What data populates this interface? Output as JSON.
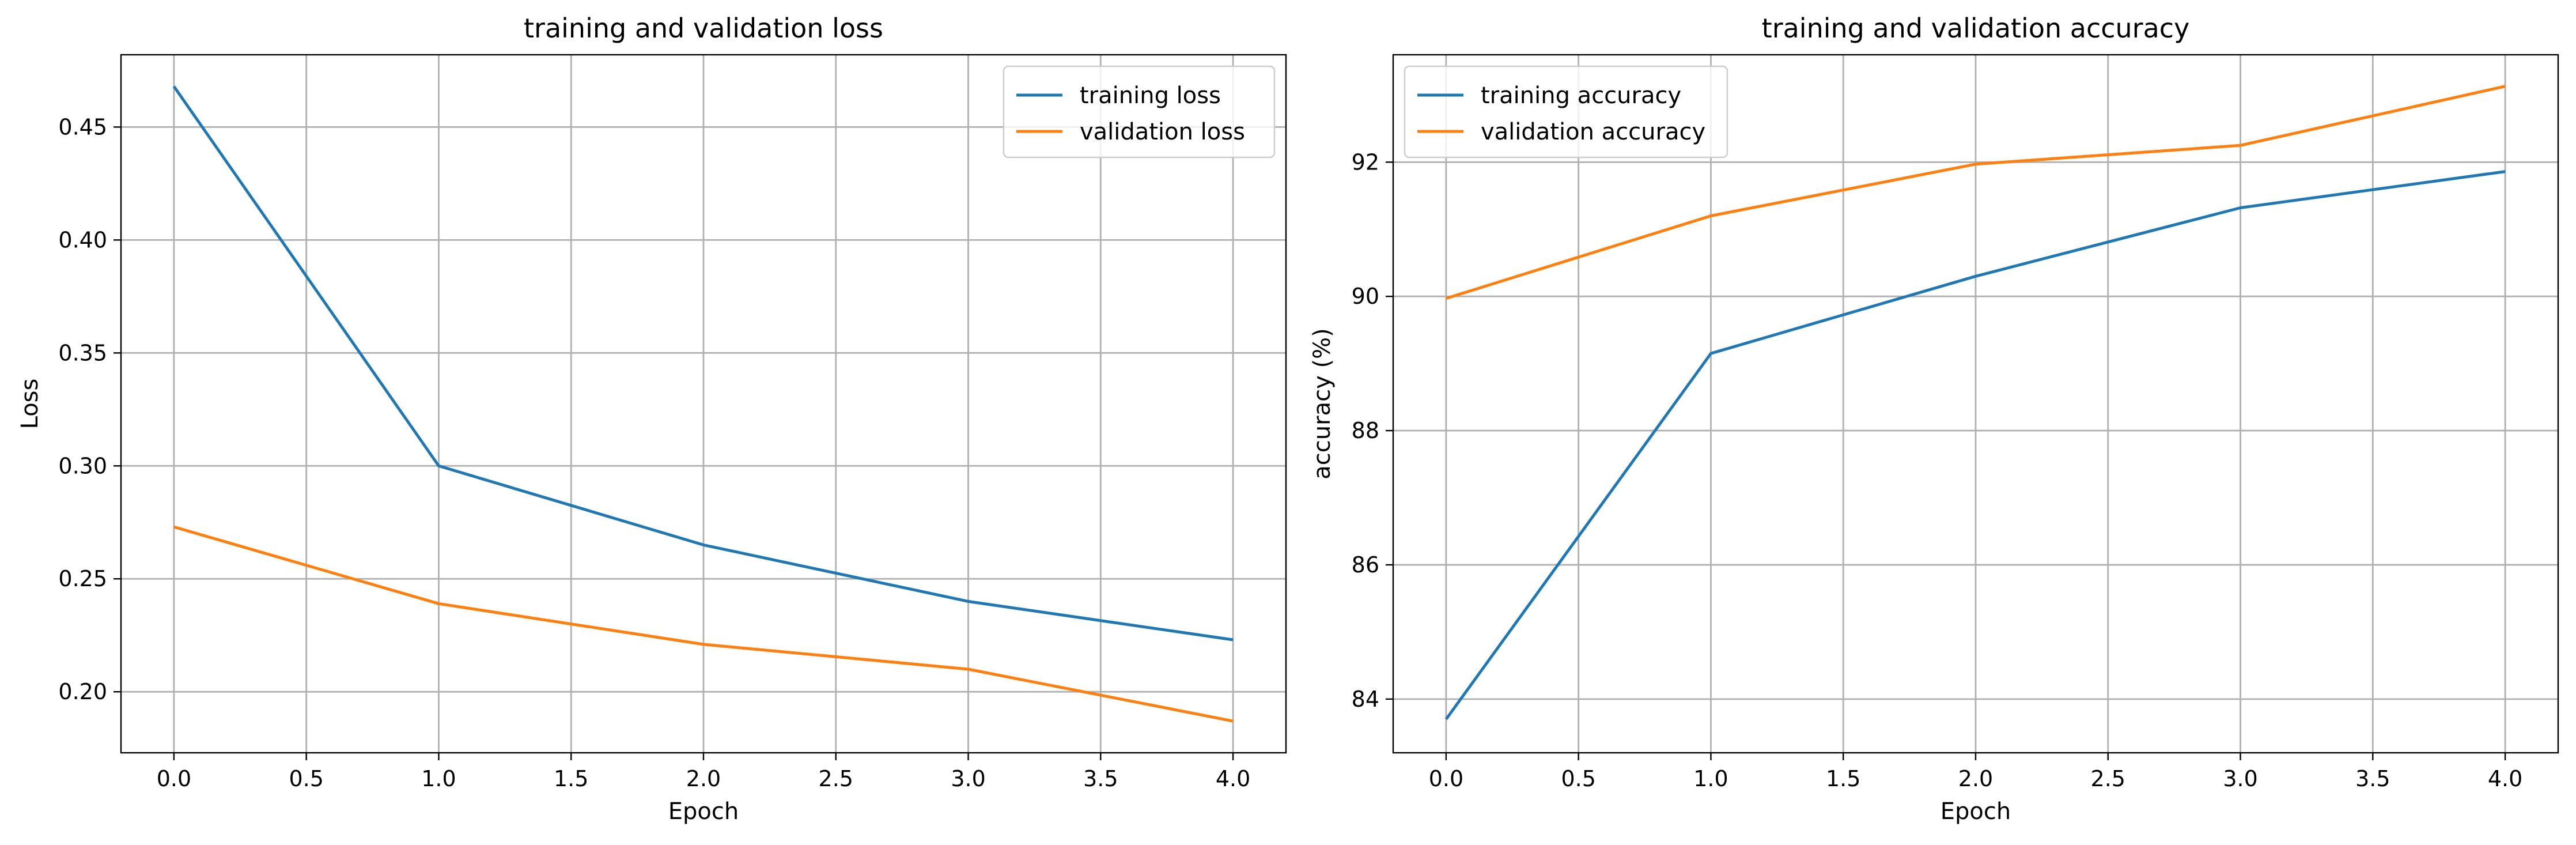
{
  "chart_data": [
    {
      "type": "line",
      "title": "training and validation loss",
      "xlabel": "Epoch",
      "ylabel": "Loss",
      "xlim": [
        -0.2,
        4.2
      ],
      "ylim": [
        0.173,
        0.482
      ],
      "xticks": [
        0.0,
        0.5,
        1.0,
        1.5,
        2.0,
        2.5,
        3.0,
        3.5,
        4.0
      ],
      "xtick_labels": [
        "0.0",
        "0.5",
        "1.0",
        "1.5",
        "2.0",
        "2.5",
        "3.0",
        "3.5",
        "4.0"
      ],
      "yticks": [
        0.2,
        0.25,
        0.3,
        0.35,
        0.4,
        0.45
      ],
      "ytick_labels": [
        "0.20",
        "0.25",
        "0.30",
        "0.35",
        "0.40",
        "0.45"
      ],
      "grid": true,
      "legend_position": "top-right",
      "x": [
        0,
        1,
        2,
        3,
        4
      ],
      "series": [
        {
          "name": "training loss",
          "color": "#1f77b4",
          "values": [
            0.468,
            0.3,
            0.265,
            0.24,
            0.223
          ]
        },
        {
          "name": "validation loss",
          "color": "#ff7f0e",
          "values": [
            0.273,
            0.239,
            0.221,
            0.21,
            0.187
          ]
        }
      ]
    },
    {
      "type": "line",
      "title": "training and validation accuracy",
      "xlabel": "Epoch",
      "ylabel": "accuracy (%)",
      "xlim": [
        -0.2,
        4.2
      ],
      "ylim": [
        83.2,
        93.6
      ],
      "xticks": [
        0.0,
        0.5,
        1.0,
        1.5,
        2.0,
        2.5,
        3.0,
        3.5,
        4.0
      ],
      "xtick_labels": [
        "0.0",
        "0.5",
        "1.0",
        "1.5",
        "2.0",
        "2.5",
        "3.0",
        "3.5",
        "4.0"
      ],
      "yticks": [
        84,
        86,
        88,
        90,
        92
      ],
      "ytick_labels": [
        "84",
        "86",
        "88",
        "90",
        "92"
      ],
      "grid": true,
      "legend_position": "top-left",
      "x": [
        0,
        1,
        2,
        3,
        4
      ],
      "series": [
        {
          "name": "training accuracy",
          "color": "#1f77b4",
          "values": [
            83.7,
            89.15,
            90.3,
            91.32,
            91.86
          ]
        },
        {
          "name": "validation accuracy",
          "color": "#ff7f0e",
          "values": [
            89.97,
            91.2,
            91.97,
            92.25,
            93.13
          ]
        }
      ]
    }
  ]
}
